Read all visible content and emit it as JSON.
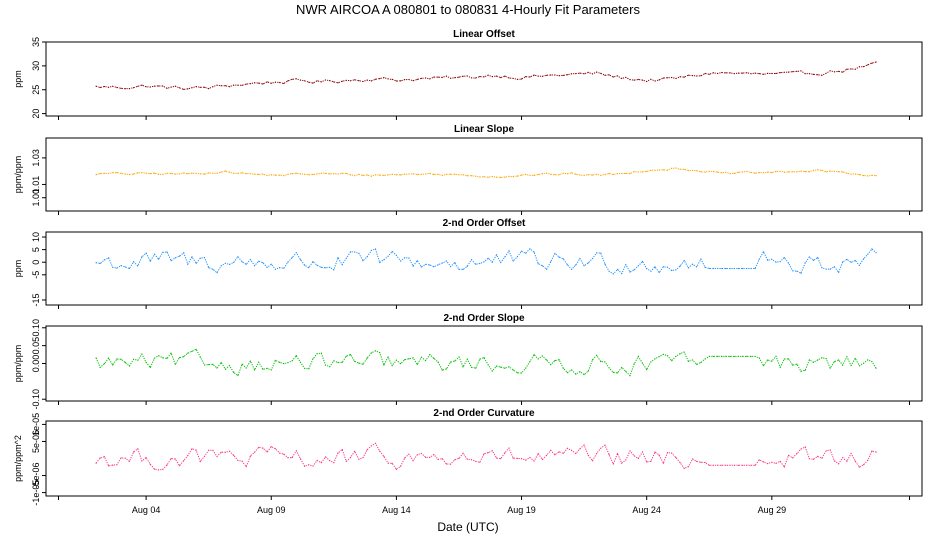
{
  "title": "NWR   AIRCOA A   080801 to 080831   4-Hourly Fit Parameters",
  "xlabel": "Date (UTC)",
  "x_ticks": [
    "Aug 04",
    "Aug 09",
    "Aug 14",
    "Aug 19",
    "Aug 24",
    "Aug 29"
  ],
  "chart_data": [
    {
      "type": "line",
      "title": "Linear Offset",
      "ylabel": "ppm",
      "color": "#8b0000",
      "ylim": [
        19.5,
        35
      ],
      "yticks": [
        "20",
        "25",
        "30",
        "35"
      ],
      "x_start_day": 2,
      "x_end_day": 33.2,
      "series": [
        {
          "anchors": [
            [
              2,
              25.6
            ],
            [
              3,
              25.5
            ],
            [
              4,
              25.8
            ],
            [
              5.3,
              25.3
            ],
            [
              6.5,
              25.4
            ],
            [
              7.5,
              26.0
            ],
            [
              8.7,
              26.5
            ],
            [
              10,
              26.8
            ],
            [
              11,
              26.7
            ],
            [
              12,
              27.0
            ],
            [
              13,
              27.3
            ],
            [
              14,
              27.1
            ],
            [
              15,
              27.3
            ],
            [
              16,
              27.4
            ],
            [
              17,
              27.6
            ],
            [
              17.8,
              28.1
            ],
            [
              19,
              27.6
            ],
            [
              20,
              27.9
            ],
            [
              21,
              28.2
            ],
            [
              22,
              28.4
            ],
            [
              23,
              27.5
            ],
            [
              24,
              27.0
            ],
            [
              25,
              27.2
            ],
            [
              26,
              28.0
            ],
            [
              26.7,
              28.6
            ],
            [
              28,
              28.3
            ],
            [
              29,
              28.2
            ],
            [
              30,
              28.2
            ],
            [
              31,
              28.6
            ],
            [
              32,
              29.2
            ],
            [
              33.2,
              30.4
            ]
          ],
          "noise": 0.35
        }
      ]
    },
    {
      "type": "line",
      "title": "Linear Slope",
      "ylabel": "ppm/ppm",
      "color": "#ffa500",
      "ylim": [
        0.99,
        1.045
      ],
      "yticks": [
        "1.00",
        "1.01",
        "1.03"
      ],
      "x_start_day": 2,
      "x_end_day": 33.2,
      "series": [
        {
          "anchors": [
            [
              2,
              1.018
            ],
            [
              4,
              1.018
            ],
            [
              6,
              1.018
            ],
            [
              7,
              1.02
            ],
            [
              8,
              1.018
            ],
            [
              9,
              1.017
            ],
            [
              11,
              1.018
            ],
            [
              13,
              1.017
            ],
            [
              15,
              1.018
            ],
            [
              17,
              1.017
            ],
            [
              18,
              1.016
            ],
            [
              19,
              1.017
            ],
            [
              21,
              1.018
            ],
            [
              22,
              1.017
            ],
            [
              23,
              1.018
            ],
            [
              24,
              1.021
            ],
            [
              25,
              1.022
            ],
            [
              26,
              1.021
            ],
            [
              27,
              1.018
            ],
            [
              29,
              1.019
            ],
            [
              30,
              1.02
            ],
            [
              31,
              1.02
            ],
            [
              32,
              1.019
            ],
            [
              33.2,
              1.016
            ]
          ],
          "noise": 0.0008
        }
      ]
    },
    {
      "type": "line",
      "title": "2-nd Order Offset",
      "ylabel": "ppm",
      "color": "#1e90ff",
      "ylim": [
        -17,
        12
      ],
      "yticks": [
        "-15",
        "-5",
        "0",
        "5",
        "10"
      ],
      "x_start_day": 2,
      "x_end_day": 33.2,
      "series": [
        {
          "anchors": [
            [
              2,
              0
            ],
            [
              33.2,
              0
            ]
          ],
          "noise": 3.5,
          "flat_segment": [
            [
              26.5,
              28.5,
              -2.5
            ]
          ]
        }
      ]
    },
    {
      "type": "line",
      "title": "2-nd Order Slope",
      "ylabel": "ppm/ppm",
      "color": "#00c000",
      "ylim": [
        -0.105,
        0.105
      ],
      "yticks": [
        "-0.10",
        "0.00",
        "0.05",
        "0.10"
      ],
      "x_start_day": 2,
      "x_end_day": 33.2,
      "series": [
        {
          "anchors": [
            [
              2,
              0
            ],
            [
              33.2,
              0
            ]
          ],
          "noise": 0.022,
          "flat_segment": [
            [
              26.5,
              28.5,
              0.02
            ]
          ]
        }
      ]
    },
    {
      "type": "line",
      "title": "2-nd Order Curvature",
      "ylabel": "ppm/ppm^2",
      "color": "#ff3385",
      "ylim": [
        -1.1e-05,
        1.1e-05
      ],
      "yticks": [
        "-1e-05",
        "-5e-06",
        "5e-06",
        "1e-05"
      ],
      "x_start_day": 2,
      "x_end_day": 33.2,
      "series": [
        {
          "anchors": [
            [
              2,
              0
            ],
            [
              33.2,
              0
            ]
          ],
          "noise": 2.5e-06,
          "flat_segment": [
            [
              26.5,
              28.5,
              -2e-06
            ]
          ]
        }
      ]
    }
  ]
}
